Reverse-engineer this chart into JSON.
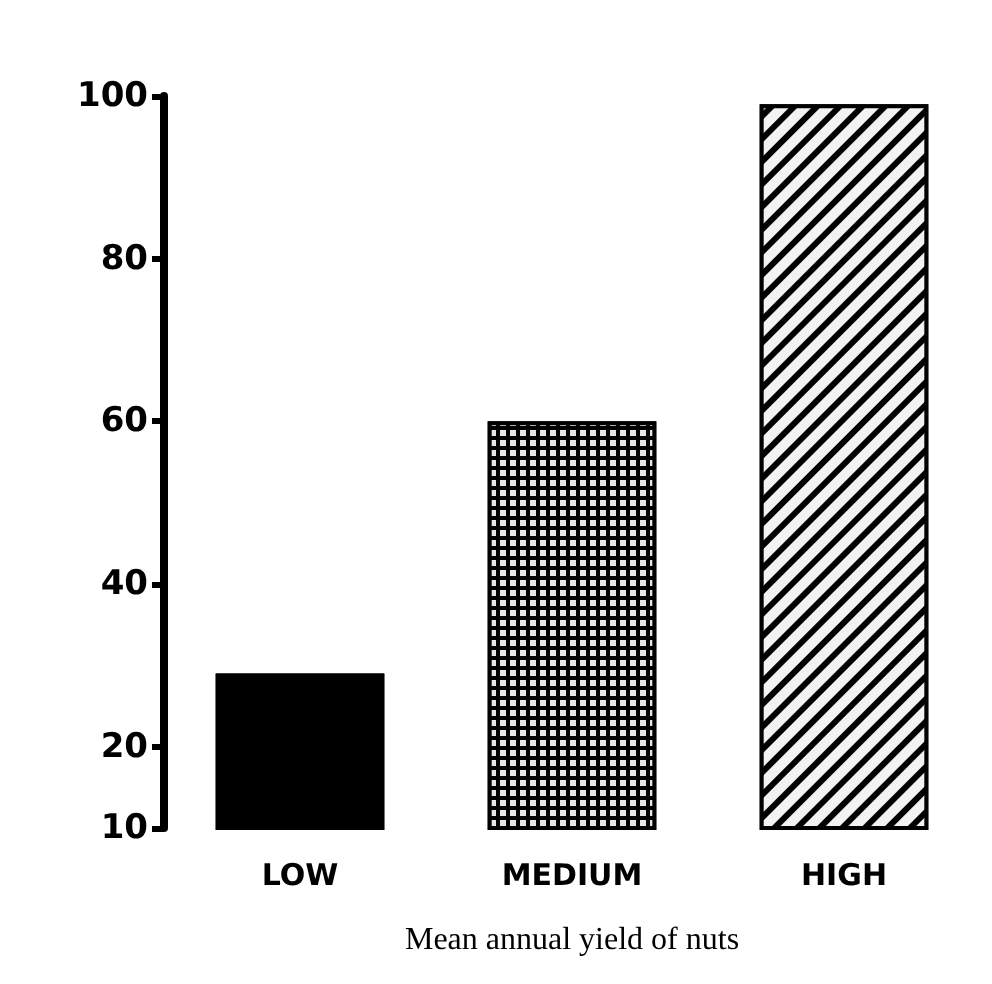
{
  "chart_data": {
    "type": "bar",
    "xlabel": "Mean annual yield of nuts",
    "categories": [
      "LOW",
      "MEDIUM",
      "HIGH"
    ],
    "values": [
      29,
      60,
      99
    ],
    "colors": [
      "#000000",
      "#000000",
      "#000000"
    ],
    "ylim": [
      10,
      100
    ],
    "yticks": [
      10,
      20,
      40,
      60,
      80,
      100
    ],
    "grid": false
  }
}
